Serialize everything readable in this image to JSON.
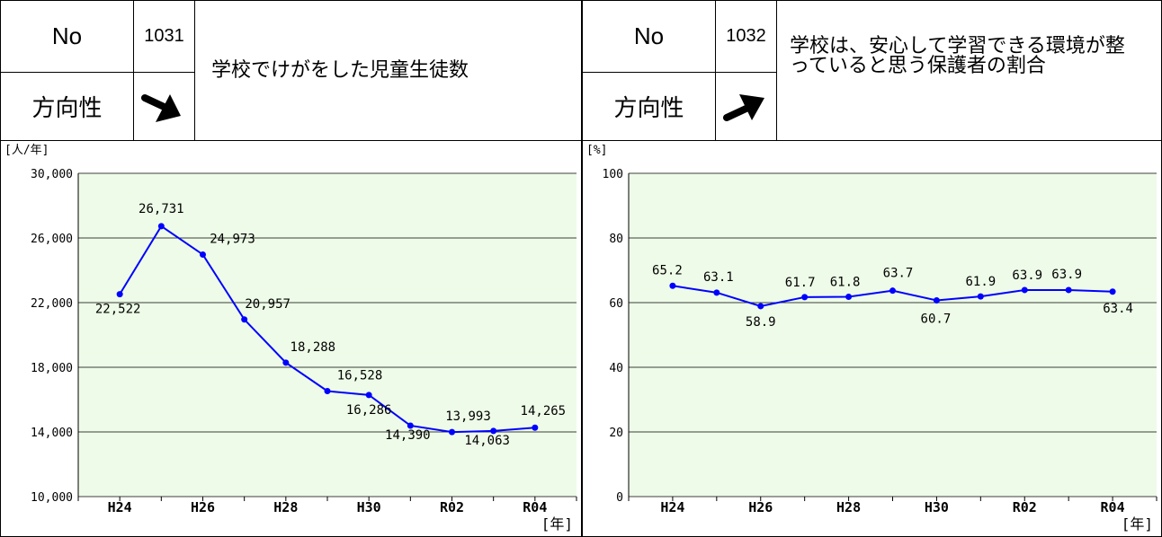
{
  "panels": [
    {
      "no_label": "No",
      "no_value": "1031",
      "direction_label": "方向性",
      "direction_icon": "arrow-down-right-icon",
      "title": "学校でけがをした児童生徒数"
    },
    {
      "no_label": "No",
      "no_value": "1032",
      "direction_label": "方向性",
      "direction_icon": "arrow-up-right-icon",
      "title": "学校は、安心して学習できる環境が整っていると思う保護者の割合"
    }
  ],
  "chart_data": [
    {
      "type": "line",
      "unit_label": "[人/年]",
      "xlabel": "[年]",
      "ylim": [
        10000,
        30000
      ],
      "yticks": [
        10000,
        14000,
        18000,
        22000,
        26000,
        30000
      ],
      "ytick_labels": [
        "10,000",
        "14,000",
        "18,000",
        "22,000",
        "26,000",
        "30,000"
      ],
      "categories": [
        "H24",
        "H25",
        "H26",
        "H27",
        "H28",
        "H29",
        "H30",
        "R01",
        "R02",
        "R03",
        "R04"
      ],
      "xtick_labels": [
        "H24",
        "",
        "H26",
        "",
        "H28",
        "",
        "H30",
        "",
        "R02",
        "",
        "R04"
      ],
      "values": [
        22522,
        26731,
        24973,
        20957,
        18288,
        16528,
        16286,
        14390,
        13993,
        14063,
        14265
      ],
      "data_labels": [
        "22,522",
        "26,731",
        "24,973",
        "20,957",
        "18,288",
        "16,528",
        "16,286",
        "14,390",
        "13,993",
        "14,063",
        "14,265"
      ],
      "grid": true,
      "background": "#eefbe8",
      "line_color": "#0000ff"
    },
    {
      "type": "line",
      "unit_label": "[%]",
      "xlabel": "[年]",
      "ylim": [
        0,
        100
      ],
      "yticks": [
        0,
        20,
        40,
        60,
        80,
        100
      ],
      "ytick_labels": [
        "0",
        "20",
        "40",
        "60",
        "80",
        "100"
      ],
      "categories": [
        "H24",
        "H25",
        "H26",
        "H27",
        "H28",
        "H29",
        "H30",
        "R01",
        "R02",
        "R03",
        "R04"
      ],
      "xtick_labels": [
        "H24",
        "",
        "H26",
        "",
        "H28",
        "",
        "H30",
        "",
        "R02",
        "",
        "R04"
      ],
      "values": [
        65.2,
        63.1,
        58.9,
        61.7,
        61.8,
        63.7,
        60.7,
        61.9,
        63.9,
        63.9,
        63.4
      ],
      "data_labels": [
        "65.2",
        "63.1",
        "58.9",
        "61.7",
        "61.8",
        "63.7",
        "60.7",
        "61.9",
        "63.9",
        "63.9",
        "63.4"
      ],
      "grid": true,
      "background": "#eefbe8",
      "line_color": "#0000ff"
    }
  ]
}
